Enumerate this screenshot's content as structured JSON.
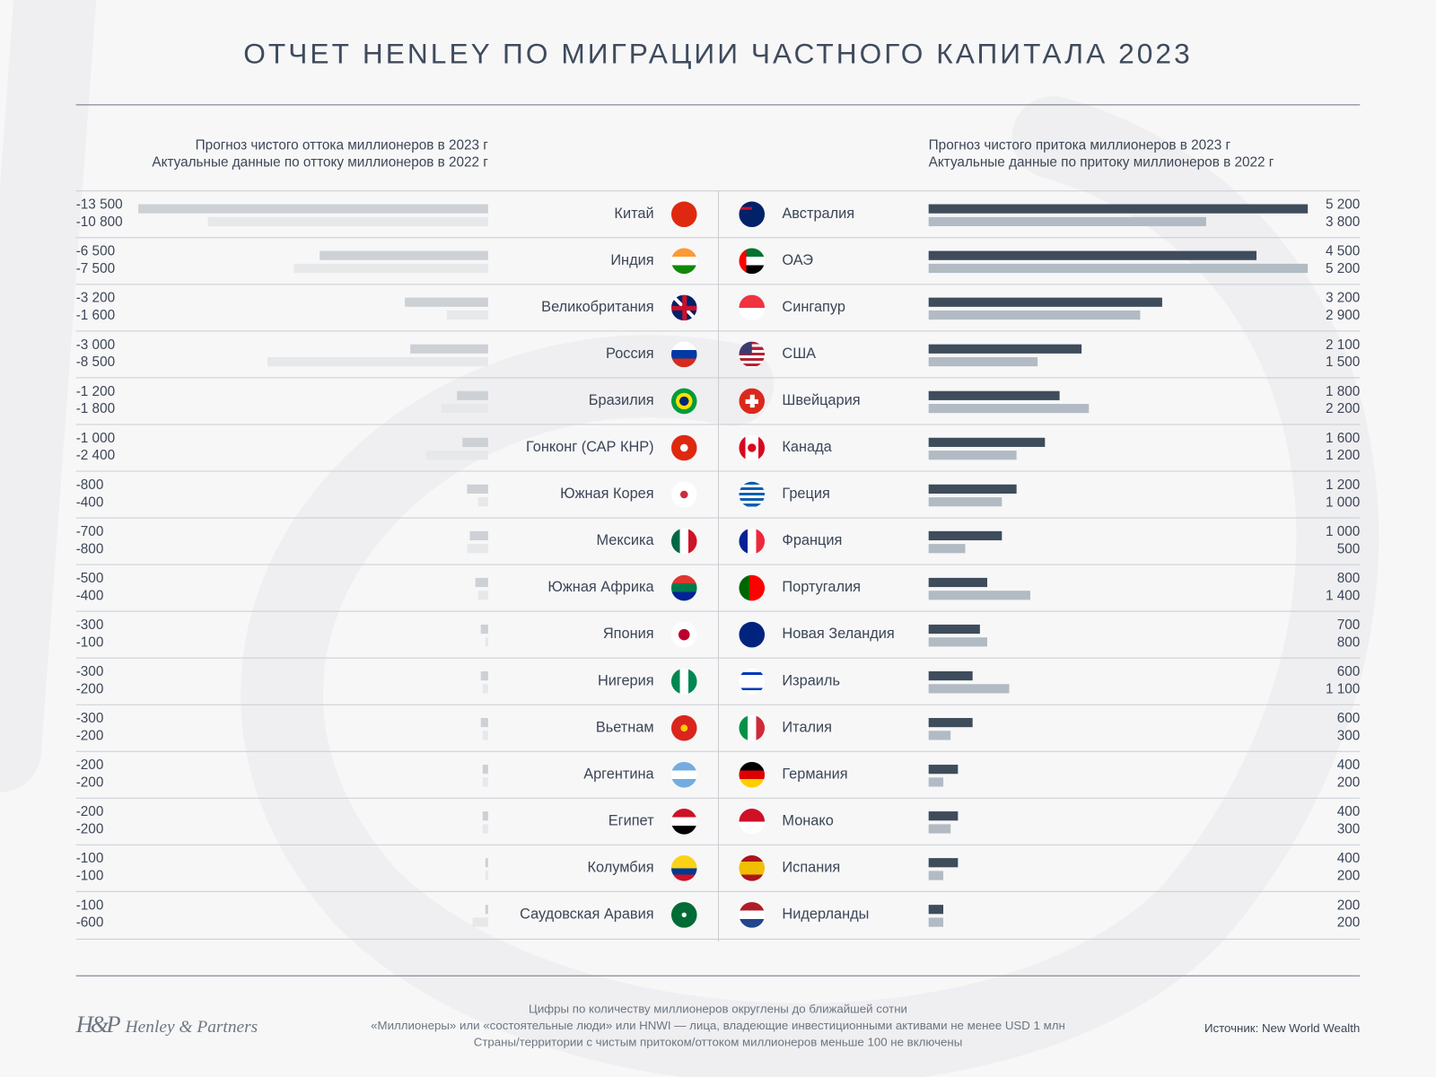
{
  "title": "ОТЧЕТ HENLEY ПО МИГРАЦИИ ЧАСТНОГО КАПИТАЛА 2023",
  "left_header": [
    "Прогноз чистого оттока миллионеров в 2023 г",
    "Актуальные данные по оттоку миллионеров в 2022 г"
  ],
  "right_header": [
    "Прогноз чистого притока миллионеров в 2023 г",
    "Актуальные данные по притоку миллионеров в 2022 г"
  ],
  "colors": {
    "outflow_2023": "#cdd1d5",
    "outflow_2022": "#e6e8ea",
    "inflow_2023": "#3e4c5b",
    "inflow_2022": "#b2bbc3",
    "background": "#f7f7f8"
  },
  "chart_data": [
    {
      "type": "bar",
      "orientation": "horizontal",
      "title": "Прогноз чистого оттока миллионеров в 2023 г / Актуальные данные по оттоку миллионеров в 2022 г",
      "categories": [
        "Китай",
        "Индия",
        "Великобритания",
        "Россия",
        "Бразилия",
        "Гонконг (САР КНР)",
        "Южная Корея",
        "Мексика",
        "Южная Африка",
        "Япония",
        "Нигерия",
        "Вьетнам",
        "Аргентина",
        "Египет",
        "Колумбия",
        "Саудовская Аравия"
      ],
      "icons": [
        "flag-china",
        "flag-india",
        "flag-uk",
        "flag-russia",
        "flag-brazil",
        "flag-hongkong",
        "flag-south-korea",
        "flag-mexico",
        "flag-south-africa",
        "flag-japan",
        "flag-nigeria",
        "flag-vietnam",
        "flag-argentina",
        "flag-egypt",
        "flag-colombia",
        "flag-saudi-arabia"
      ],
      "series": [
        {
          "name": "Прогноз чистого оттока миллионеров в 2023 г",
          "values": [
            -13500,
            -6500,
            -3200,
            -3000,
            -1200,
            -1000,
            -800,
            -700,
            -500,
            -300,
            -300,
            -300,
            -200,
            -200,
            -100,
            -100
          ]
        },
        {
          "name": "Актуальные данные по оттоку миллионеров в 2022 г",
          "values": [
            -10800,
            -7500,
            -1600,
            -8500,
            -1800,
            -2400,
            -400,
            -800,
            -400,
            -100,
            -200,
            -200,
            -200,
            -200,
            -100,
            -600
          ]
        }
      ],
      "labels_2023": [
        "-13 500",
        "-6 500",
        "-3 200",
        "-3 000",
        "-1 200",
        "-1 000",
        "-800",
        "-700",
        "-500",
        "-300",
        "-300",
        "-300",
        "-200",
        "-200",
        "-100",
        "-100"
      ],
      "labels_2022": [
        "-10 800",
        "-7 500",
        "-1 600",
        "-8 500",
        "-1 800",
        "-2 400",
        "-400",
        "-800",
        "-400",
        "-100",
        "-200",
        "-200",
        "-200",
        "-200",
        "-100",
        "-600"
      ]
    },
    {
      "type": "bar",
      "orientation": "horizontal",
      "title": "Прогноз чистого притока миллионеров в 2023 г / Актуальные данные по притоку миллионеров в 2022 г",
      "categories": [
        "Австралия",
        "ОАЭ",
        "Сингапур",
        "США",
        "Швейцария",
        "Канада",
        "Греция",
        "Франция",
        "Португалия",
        "Новая Зеландия",
        "Израиль",
        "Италия",
        "Германия",
        "Монако",
        "Испания",
        "Нидерланды"
      ],
      "icons": [
        "flag-australia",
        "flag-uae",
        "flag-singapore",
        "flag-usa",
        "flag-switzerland",
        "flag-canada",
        "flag-greece",
        "flag-france",
        "flag-portugal",
        "flag-new-zealand",
        "flag-israel",
        "flag-italy",
        "flag-germany",
        "flag-monaco",
        "flag-spain",
        "flag-netherlands"
      ],
      "series": [
        {
          "name": "Прогноз чистого притока миллионеров в 2023 г",
          "values": [
            5200,
            4500,
            3200,
            2100,
            1800,
            1600,
            1200,
            1000,
            800,
            700,
            600,
            600,
            400,
            400,
            400,
            200
          ]
        },
        {
          "name": "Актуальные данные по притоку миллионеров в 2022 г",
          "values": [
            3800,
            5200,
            2900,
            1500,
            2200,
            1200,
            1000,
            500,
            1400,
            800,
            1100,
            300,
            200,
            300,
            200,
            200
          ]
        }
      ],
      "labels_2023": [
        "5 200",
        "4 500",
        "3 200",
        "2 100",
        "1 800",
        "1 600",
        "1 200",
        "1 000",
        "800",
        "700",
        "600",
        "600",
        "400",
        "400",
        "400",
        "200"
      ],
      "labels_2022": [
        "3 800",
        "5 200",
        "2 900",
        "1 500",
        "2 200",
        "1 200",
        "1 000",
        "500",
        "1 400",
        "800",
        "1 100",
        "300",
        "200",
        "300",
        "200",
        "200"
      ]
    }
  ],
  "footer": {
    "notes": [
      "Цифры по количеству миллионеров округлены до ближайшей сотни",
      "«Миллионеры» или «состоятельные люди» или HNWI — лица, владеющие инвестиционными активами не менее USD 1 млн",
      "Страны/территории с чистым притоком/оттоком миллионеров меньше 100 не включены"
    ],
    "source": "Источник: New World Wealth",
    "logo_mark": "H&P",
    "logo_name": "Henley & Partners"
  }
}
